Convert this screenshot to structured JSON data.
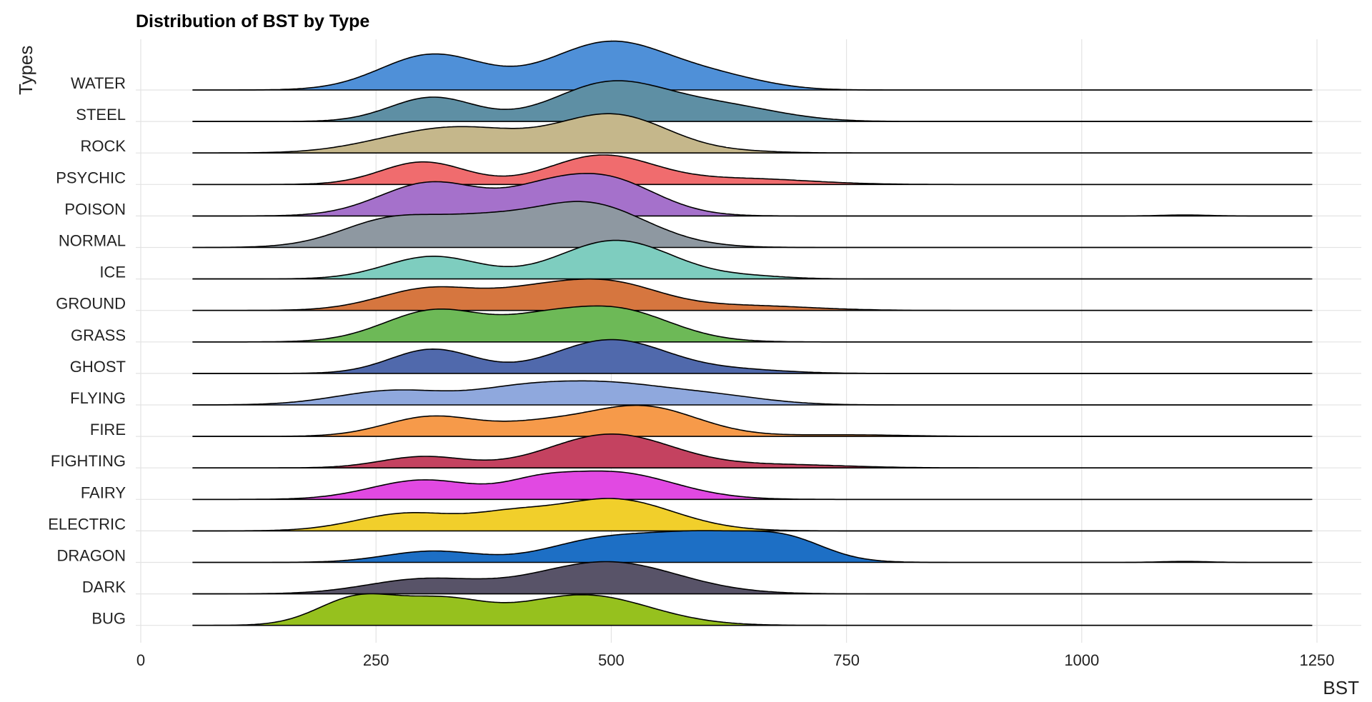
{
  "chart_data": {
    "type": "ridgeline",
    "title": "Distribution of BST by Type",
    "xlabel": "BST",
    "ylabel": "Types",
    "xlim": [
      0,
      1250
    ],
    "xticks": [
      0,
      250,
      500,
      750,
      1000,
      1250
    ],
    "xtick_labels": [
      "0",
      "250",
      "500",
      "750",
      "1000",
      "1250"
    ],
    "grid": true,
    "legend": "none",
    "categories": [
      "BUG",
      "DARK",
      "DRAGON",
      "ELECTRIC",
      "FAIRY",
      "FIGHTING",
      "FIRE",
      "FLYING",
      "GHOST",
      "GRASS",
      "GROUND",
      "ICE",
      "NORMAL",
      "POISON",
      "PSYCHIC",
      "ROCK",
      "STEEL",
      "WATER"
    ],
    "series": [
      {
        "name": "BUG",
        "color": "#96c11e",
        "range": [
          55,
          1245
        ],
        "peaks": [
          [
            230,
            0.85,
            42
          ],
          [
            320,
            0.72,
            45
          ],
          [
            470,
            0.95,
            70
          ]
        ]
      },
      {
        "name": "DARK",
        "color": "#585368",
        "range": [
          55,
          1245
        ],
        "peaks": [
          [
            300,
            0.45,
            60
          ],
          [
            495,
            1.0,
            75
          ]
        ]
      },
      {
        "name": "DRAGON",
        "color": "#1d6fc5",
        "range": [
          55,
          1245
        ],
        "peaks": [
          [
            310,
            0.35,
            50
          ],
          [
            480,
            0.55,
            55
          ],
          [
            600,
            0.9,
            70
          ],
          [
            690,
            0.45,
            40
          ],
          [
            1110,
            0.03,
            25
          ]
        ]
      },
      {
        "name": "ELECTRIC",
        "color": "#f1cf2b",
        "range": [
          55,
          1245
        ],
        "peaks": [
          [
            285,
            0.55,
            55
          ],
          [
            390,
            0.35,
            40
          ],
          [
            500,
            1.0,
            65
          ]
        ]
      },
      {
        "name": "FAIRY",
        "color": "#e149e2",
        "range": [
          55,
          1245
        ],
        "peaks": [
          [
            300,
            0.6,
            55
          ],
          [
            420,
            0.3,
            35
          ],
          [
            500,
            0.85,
            65
          ]
        ]
      },
      {
        "name": "FIGHTING",
        "color": "#c44260",
        "range": [
          55,
          1245
        ],
        "peaks": [
          [
            300,
            0.35,
            45
          ],
          [
            500,
            1.05,
            65
          ],
          [
            680,
            0.1,
            70
          ]
        ]
      },
      {
        "name": "FIRE",
        "color": "#f69a4a",
        "range": [
          55,
          1245
        ],
        "peaks": [
          [
            310,
            0.62,
            50
          ],
          [
            420,
            0.3,
            45
          ],
          [
            530,
            0.95,
            60
          ],
          [
            750,
            0.05,
            60
          ]
        ]
      },
      {
        "name": "FLYING",
        "color": "#8fa8dd",
        "range": [
          55,
          1245
        ],
        "peaks": [
          [
            270,
            0.45,
            60
          ],
          [
            400,
            0.4,
            50
          ],
          [
            490,
            0.6,
            60
          ],
          [
            600,
            0.3,
            60
          ]
        ]
      },
      {
        "name": "GHOST",
        "color": "#5069ac",
        "range": [
          55,
          1245
        ],
        "peaks": [
          [
            310,
            0.75,
            45
          ],
          [
            500,
            1.05,
            60
          ],
          [
            640,
            0.1,
            50
          ]
        ]
      },
      {
        "name": "GRASS",
        "color": "#6db957",
        "range": [
          55,
          1245
        ],
        "peaks": [
          [
            315,
            1.0,
            55
          ],
          [
            420,
            0.35,
            40
          ],
          [
            500,
            1.05,
            60
          ]
        ]
      },
      {
        "name": "GROUND",
        "color": "#d6763f",
        "range": [
          55,
          1245
        ],
        "peaks": [
          [
            310,
            0.7,
            55
          ],
          [
            415,
            0.4,
            45
          ],
          [
            495,
            0.85,
            55
          ],
          [
            640,
            0.15,
            70
          ]
        ]
      },
      {
        "name": "ICE",
        "color": "#7ecdbf",
        "range": [
          55,
          1245
        ],
        "peaks": [
          [
            310,
            0.7,
            50
          ],
          [
            505,
            1.2,
            60
          ],
          [
            650,
            0.07,
            40
          ]
        ]
      },
      {
        "name": "NORMAL",
        "color": "#8e98a1",
        "range": [
          55,
          1245
        ],
        "peaks": [
          [
            270,
            0.9,
            55
          ],
          [
            360,
            0.5,
            45
          ],
          [
            470,
            1.4,
            65
          ]
        ]
      },
      {
        "name": "POISON",
        "color": "#a571cb",
        "range": [
          55,
          1245
        ],
        "peaks": [
          [
            310,
            1.05,
            55
          ],
          [
            420,
            0.4,
            40
          ],
          [
            490,
            1.2,
            55
          ],
          [
            1110,
            0.03,
            25
          ]
        ]
      },
      {
        "name": "PSYCHIC",
        "color": "#f06c6e",
        "range": [
          55,
          1245
        ],
        "peaks": [
          [
            300,
            0.7,
            45
          ],
          [
            490,
            0.9,
            55
          ],
          [
            640,
            0.18,
            70
          ]
        ]
      },
      {
        "name": "ROCK",
        "color": "#c5b78b",
        "range": [
          55,
          1245
        ],
        "peaks": [
          [
            290,
            0.45,
            60
          ],
          [
            360,
            0.5,
            55
          ],
          [
            500,
            1.2,
            60
          ],
          [
            650,
            0.03,
            40
          ]
        ]
      },
      {
        "name": "STEEL",
        "color": "#5e8fa4",
        "range": [
          55,
          1245
        ],
        "peaks": [
          [
            310,
            0.75,
            45
          ],
          [
            500,
            1.2,
            60
          ],
          [
            620,
            0.45,
            60
          ]
        ]
      },
      {
        "name": "WATER",
        "color": "#4f90d8",
        "range": [
          55,
          1245
        ],
        "peaks": [
          [
            310,
            1.1,
            55
          ],
          [
            500,
            1.5,
            65
          ],
          [
            620,
            0.3,
            50
          ]
        ]
      }
    ]
  }
}
